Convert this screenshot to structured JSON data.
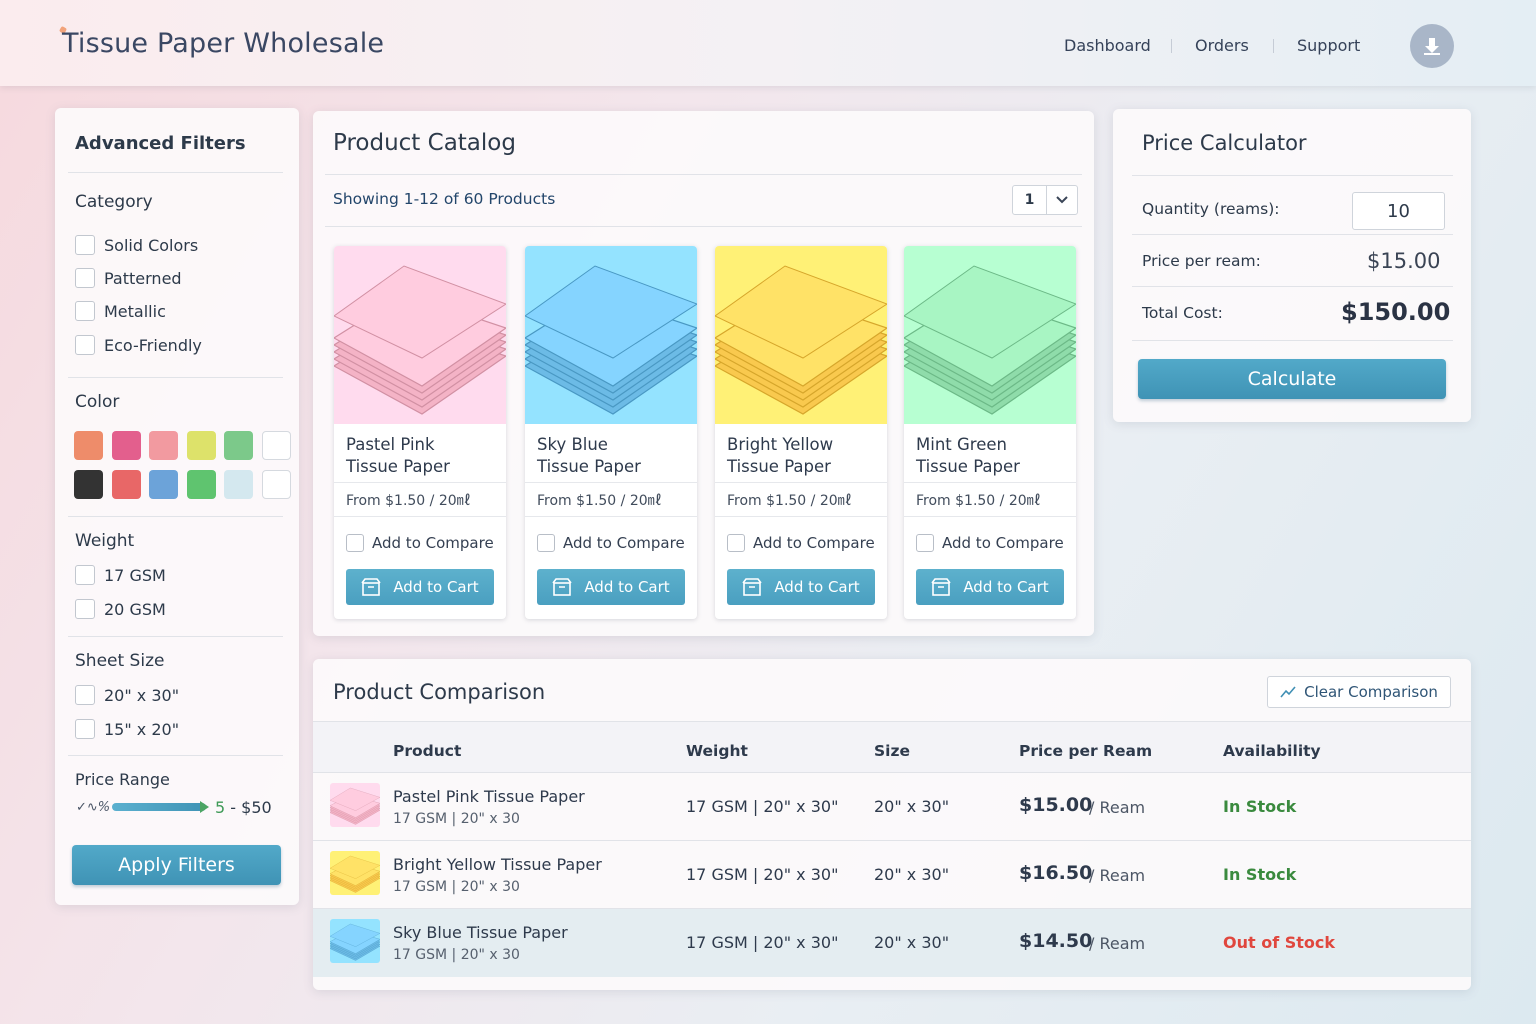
{
  "header": {
    "brand": "Tissue Paper Wholesale",
    "nav": [
      "Dashboard",
      "Orders",
      "Support"
    ],
    "avatar_icon": "download-icon"
  },
  "filters": {
    "title": "Advanced Filters",
    "category": {
      "heading": "Category",
      "options": [
        "Solid Colors",
        "Patterned",
        "Metallic",
        "Eco-Friendly"
      ]
    },
    "color": {
      "heading": "Color",
      "swatches_row1": [
        "#ee8c6a",
        "#e35f8d",
        "#f29aa0",
        "#dde26a",
        "#7cc98a",
        "#ffffff"
      ],
      "swatches_row2": [
        "#333333",
        "#e86767",
        "#6ca3d9",
        "#5fc46f",
        "#d4e8ef",
        "#ffffff"
      ]
    },
    "weight": {
      "heading": "Weight",
      "options": [
        "17 GSM",
        "20 GSM"
      ]
    },
    "sheet_size": {
      "heading": "Sheet Size",
      "options": [
        "20\" x 30\"",
        "15\" x 20\""
      ]
    },
    "price_range": {
      "heading": "Price Range",
      "icon_text": "✓∿%",
      "value": "5 - $50",
      "min": "5",
      "max": "$50"
    },
    "apply_label": "Apply Filters"
  },
  "catalog": {
    "title": "Product Catalog",
    "showing": "Showing 1-12 of 60 Products",
    "page": "1",
    "products": [
      {
        "name_line1": "Pastel Pink",
        "name_line2": "Tissue Paper",
        "price": "From $1.50  /  20㎖",
        "compare": "Add to Compare",
        "cart": "Add to Cart",
        "color": "#f4b3c6"
      },
      {
        "name_line1": "Sky Blue",
        "name_line2": "Tissue Paper",
        "price": "From $1.50  /  20㎖",
        "compare": "Add to Compare",
        "cart": "Add to Cart",
        "color": "#6cbbe6"
      },
      {
        "name_line1": "Bright Yellow",
        "name_line2": "Tissue Paper",
        "price": "From $1.50  /  20㎖",
        "compare": "Add to Compare",
        "cart": "Add to Cart",
        "color": "#f9c94e"
      },
      {
        "name_line1": "Mint Green",
        "name_line2": "Tissue Paper",
        "price": "From $1.50  /  20㎖",
        "compare": "Add to Compare",
        "cart": "Add to Cart",
        "color": "#8fdcaa"
      }
    ]
  },
  "calculator": {
    "title": "Price Calculator",
    "quantity_label": "Quantity (reams):",
    "quantity_value": "10",
    "price_label": "Price per ream:",
    "price_value": "$15.00",
    "total_label": "Total Cost:",
    "total_value": "$150.00",
    "button": "Calculate"
  },
  "comparison": {
    "title": "Product Comparison",
    "clear_label": "Clear Comparison",
    "columns": [
      "Product",
      "Weight",
      "Size",
      "Price per Ream",
      "Availability"
    ],
    "rows": [
      {
        "name": "Pastel Pink Tissue Paper",
        "sub": "17 GSM | 20\" x 30",
        "weight": "17 GSM | 20\" x 30\"",
        "size": "20\" x 30\"",
        "price": "$15.00",
        "unit": "/ Ream",
        "availability": "In Stock",
        "status_color": "#3a8a3e",
        "color": "#f4b3c6"
      },
      {
        "name": "Bright Yellow Tissue Paper",
        "sub": "17 GSM | 20\" x 30",
        "weight": "17 GSM | 20\" x 30\"",
        "size": "20\" x 30\"",
        "price": "$16.50",
        "unit": "/ Ream",
        "availability": "In Stock",
        "status_color": "#3a8a3e",
        "color": "#f9c94e"
      },
      {
        "name": "Sky Blue Tissue Paper",
        "sub": "17 GSM | 20\" x 30",
        "weight": "17 GSM | 20\" x 30\"",
        "size": "20\" x 30\"",
        "price": "$14.50",
        "unit": "/ Ream",
        "availability": "Out of Stock",
        "status_color": "#e0473e",
        "color": "#6cbbe6"
      }
    ]
  }
}
